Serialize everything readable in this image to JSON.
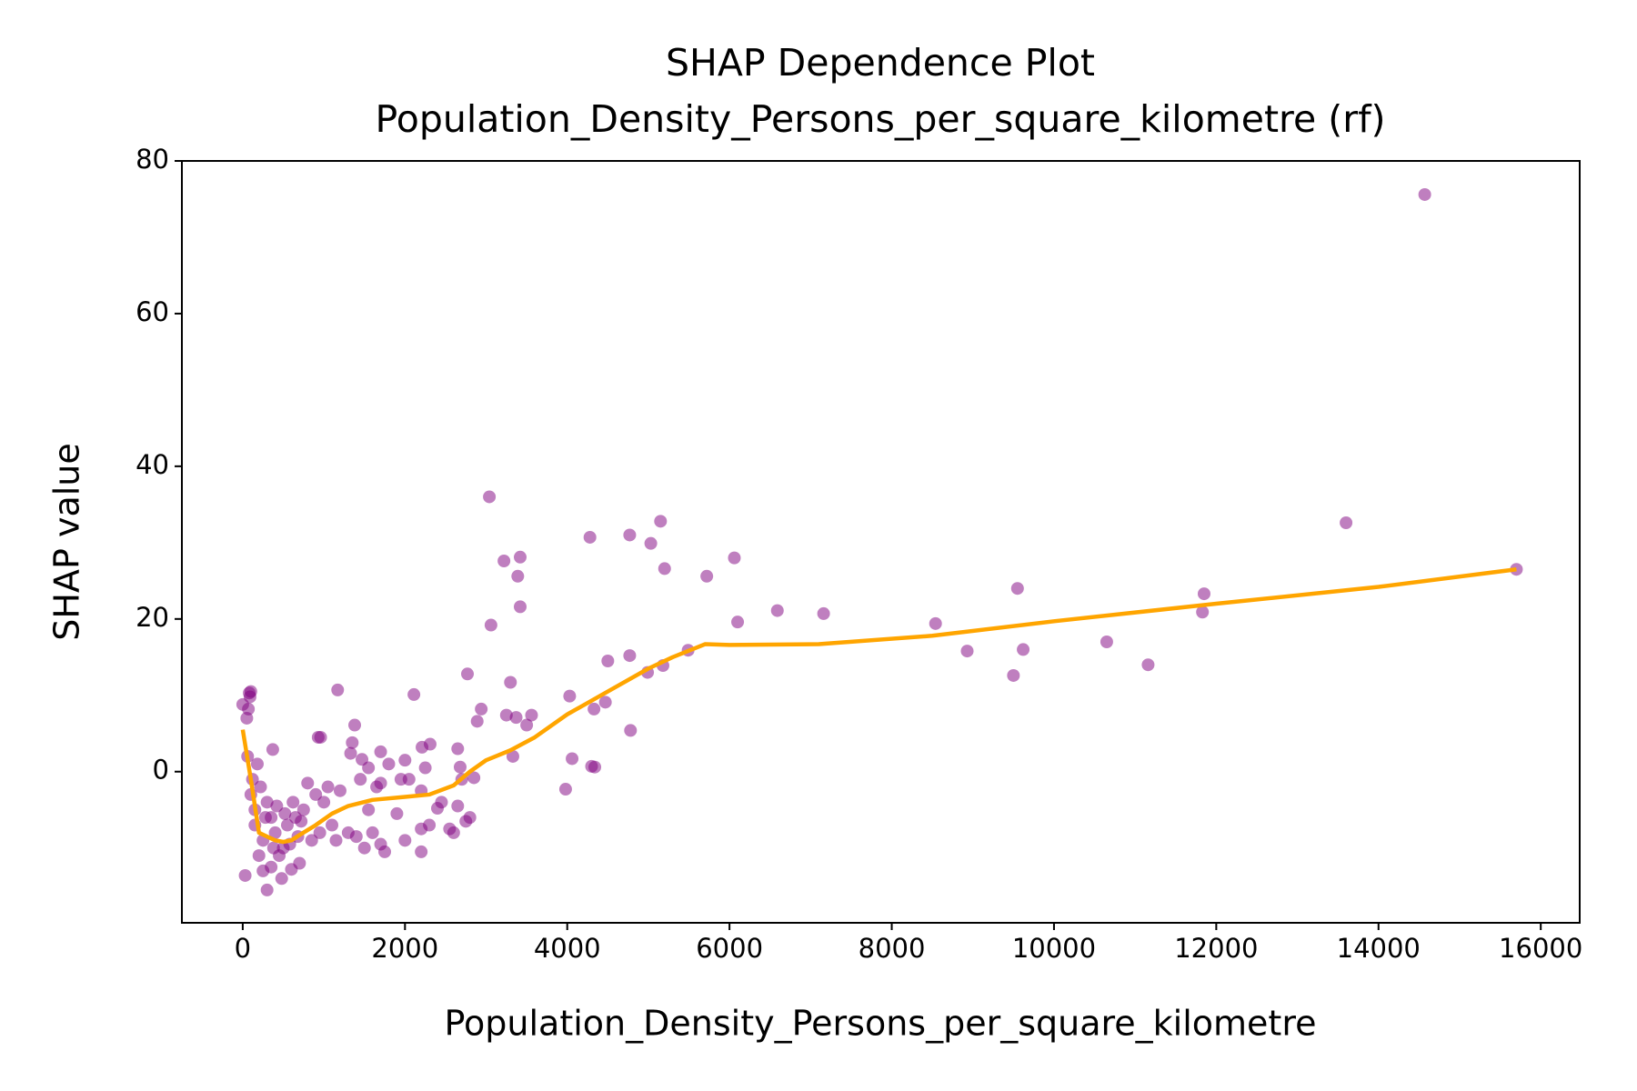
{
  "chart_data": {
    "type": "scatter",
    "title": "SHAP Dependence Plot",
    "subtitle": "Population_Density_Persons_per_square_kilometre (rf)",
    "x_label": "Population_Density_Persons_per_square_kilometre",
    "y_label": "SHAP value",
    "xlim": [
      -750,
      16480
    ],
    "ylim": [
      -19.8,
      80
    ],
    "xticks": [
      0,
      2000,
      4000,
      6000,
      8000,
      10000,
      12000,
      14000,
      16000
    ],
    "yticks": [
      0,
      20,
      40,
      60,
      80
    ],
    "grid": false,
    "scatter": {
      "color": "#800080",
      "x": [
        14570,
        3040,
        5150,
        13600,
        4280,
        4770,
        5030,
        3220,
        3420,
        3390,
        5200,
        5720,
        6060,
        9550,
        15700,
        11850,
        11830,
        3420,
        6100,
        6590,
        7160,
        3060,
        8540,
        8930,
        9620,
        9500,
        10650,
        11160,
        5490,
        4770,
        4500,
        5180,
        4990,
        2770,
        3300,
        1170,
        2110,
        4030,
        4470,
        4330,
        2940,
        3250,
        3560,
        3370,
        2890,
        3500,
        1380,
        4780,
        930,
        960,
        1350,
        370,
        2210,
        2310,
        2650,
        1330,
        1700,
        1470,
        4060,
        3330,
        4300,
        4340,
        3980,
        0,
        80,
        100,
        90,
        70,
        50,
        60,
        30,
        300,
        480,
        600,
        200,
        250,
        400,
        350,
        150,
        100,
        180,
        220,
        300,
        500,
        550,
        700,
        750,
        800,
        900,
        1000,
        1050,
        1100,
        1150,
        1300,
        1400,
        1500,
        1550,
        1600,
        1700,
        1750,
        1700,
        1800,
        1900,
        1950,
        2000,
        2050,
        2000,
        2200,
        2200,
        2250,
        2200,
        2300,
        2400,
        2450,
        2550,
        2600,
        2650,
        2700,
        2750,
        2800,
        2850,
        2680,
        1450,
        1550,
        1650,
        1200,
        950,
        850,
        650,
        450,
        350,
        250,
        150,
        120,
        280,
        380,
        420,
        520,
        580,
        620,
        680,
        720
      ],
      "y": [
        75.6,
        36,
        32.8,
        32.6,
        30.7,
        31,
        29.9,
        27.6,
        28.1,
        25.6,
        26.6,
        25.6,
        28,
        24,
        26.5,
        23.3,
        20.9,
        21.6,
        19.6,
        21.1,
        20.7,
        19.2,
        19.4,
        15.8,
        16,
        12.6,
        17,
        14,
        15.9,
        15.2,
        14.5,
        13.9,
        13,
        12.8,
        11.7,
        10.7,
        10.1,
        9.9,
        9.1,
        8.2,
        8.2,
        7.4,
        7.4,
        7.1,
        6.6,
        6.1,
        6.1,
        5.4,
        4.5,
        4.5,
        3.8,
        2.9,
        3.2,
        3.6,
        3,
        2.4,
        2.6,
        1.6,
        1.7,
        2,
        0.7,
        0.6,
        -2.3,
        8.8,
        10.3,
        10.5,
        9.8,
        8.2,
        7,
        2,
        -13.6,
        -15.5,
        -14,
        -12.8,
        -11,
        -9,
        -8,
        -6,
        -5,
        -3,
        1,
        -2,
        -4,
        -10,
        -7,
        -12,
        -5,
        -1.5,
        -3,
        -4,
        -2,
        -7,
        -9,
        -8,
        -8.5,
        -10,
        -5,
        -8,
        -9.5,
        -10.5,
        -1.5,
        1,
        -5.5,
        -1,
        1.5,
        -1,
        -9,
        -10.5,
        -7.5,
        0.5,
        -2.5,
        -7,
        -4.8,
        -4,
        -7.5,
        -8,
        -4.5,
        -1,
        -6.5,
        -6,
        -0.8,
        0.6,
        -1,
        0.5,
        -2,
        -2.5,
        -8,
        -9,
        -6,
        -11,
        -12.5,
        -13,
        -7,
        -1,
        -6,
        -10,
        -4.5,
        -5.5,
        -9.5,
        -4,
        -8.5,
        -6.5
      ]
    },
    "trend": {
      "color": "#ffa500",
      "x": [
        0,
        100,
        200,
        300,
        400,
        500,
        600,
        700,
        900,
        1100,
        1300,
        1600,
        2000,
        2300,
        2600,
        2800,
        3000,
        3300,
        3600,
        4000,
        4500,
        5000,
        5300,
        5700,
        6000,
        7100,
        8500,
        10000,
        12000,
        14000,
        15700
      ],
      "y": [
        5.5,
        -1,
        -8,
        -8.5,
        -9,
        -9.2,
        -9,
        -8.3,
        -7,
        -5.5,
        -4.5,
        -3.7,
        -3.3,
        -3,
        -1.8,
        0,
        1.5,
        2.8,
        4.5,
        7.5,
        10.5,
        13.5,
        15,
        16.7,
        16.6,
        16.7,
        17.8,
        19.7,
        22,
        24.2,
        26.5
      ]
    }
  }
}
